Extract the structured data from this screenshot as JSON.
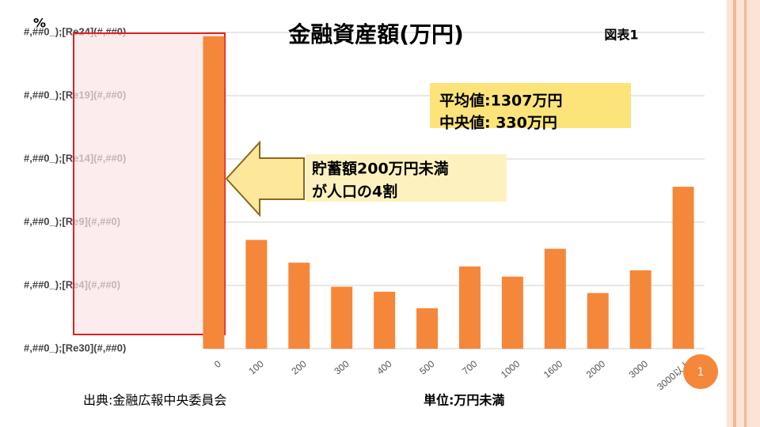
{
  "chart_data": {
    "type": "bar",
    "title": "金融資産額(万円)",
    "figure_label": "図表1",
    "y_label": "%",
    "categories": [
      "0",
      "100",
      "200",
      "300",
      "400",
      "500",
      "700",
      "1000",
      "1600",
      "2000",
      "3000",
      "3000以上"
    ],
    "values": [
      24.7,
      8.6,
      6.8,
      4.9,
      4.5,
      3.2,
      6.5,
      5.7,
      7.9,
      4.4,
      6.2,
      12.8
    ],
    "color": "#f5873a",
    "ylim": [
      0,
      25
    ],
    "yticks": [
      {
        "value": 0,
        "label": "#,##0_);[Re30](#,##0)"
      },
      {
        "value": 5,
        "label": "#,##0_);[Re4](#,##0)"
      },
      {
        "value": 10,
        "label": "#,##0_);[Re9](#,##0)"
      },
      {
        "value": 15,
        "label": "#,##0_);[Re14](#,##0)"
      },
      {
        "value": 20,
        "label": "#,##0_);[Re19](#,##0)"
      },
      {
        "value": 25,
        "label": "#,##0_);[Re24](#,##0)"
      }
    ],
    "grid": true,
    "stats": [
      "平均値:1307万円",
      "中央値:  330万円"
    ],
    "callout": [
      "貯蓄額200万円未満",
      "が人口の4割"
    ],
    "source": "出典:金融広報中央委員会",
    "unit_note": "単位:万円未満",
    "page_number": "1"
  }
}
